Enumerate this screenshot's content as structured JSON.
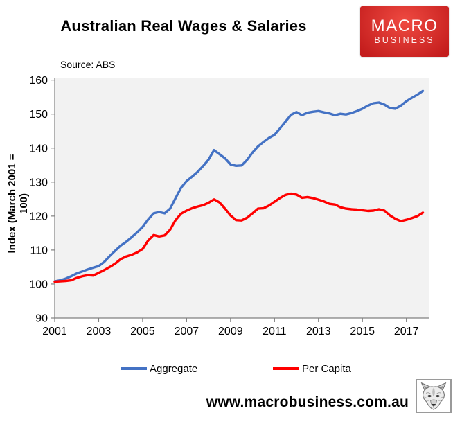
{
  "header": {
    "title": "Australian Real Wages & Salaries",
    "logo_line1": "MACRO",
    "logo_line2": "BUSINESS"
  },
  "source_note": "Source: ABS",
  "footer": {
    "url": "www.macrobusiness.com.au",
    "logo_icon": "wolf-face-icon"
  },
  "colors": {
    "aggregate": "#4472C4",
    "per_capita": "#FF0000",
    "plot_bg": "#F2F2F2",
    "axis": "#808080",
    "tick_text": "#000000",
    "logo_red_light": "#EF4A41",
    "logo_red_dark": "#C41D1D"
  },
  "chart_data": {
    "type": "line",
    "title": "Australian Real Wages & Salaries",
    "xlabel": "",
    "ylabel": "Index (March 2001 = 100)",
    "grid": false,
    "legend_position": "bottom",
    "plot_background": "#F2F2F2",
    "x_start": 2001.0,
    "x_step": 0.25,
    "xlim": [
      2001,
      2018.05
    ],
    "ylim": [
      90,
      160
    ],
    "x_ticks": [
      2001,
      2003,
      2005,
      2007,
      2009,
      2011,
      2013,
      2015,
      2017
    ],
    "x_tick_labels": [
      "2001",
      "2003",
      "2005",
      "2007",
      "2009",
      "2011",
      "2013",
      "2015",
      "2017"
    ],
    "y_ticks": [
      90,
      100,
      110,
      120,
      130,
      140,
      150,
      160
    ],
    "series": [
      {
        "name": "Aggregate",
        "color": "#4472C4",
        "values": [
          100.8,
          101.1,
          101.6,
          102.3,
          103.1,
          103.7,
          104.3,
          104.8,
          105.3,
          106.5,
          108.2,
          109.8,
          111.3,
          112.4,
          113.8,
          115.2,
          116.8,
          119.0,
          120.8,
          121.2,
          120.8,
          122.2,
          125.3,
          128.3,
          130.3,
          131.6,
          133.0,
          134.7,
          136.6,
          139.4,
          138.2,
          137.0,
          135.2,
          134.8,
          134.9,
          136.5,
          138.7,
          140.5,
          141.8,
          143.0,
          143.9,
          145.8,
          147.8,
          149.8,
          150.6,
          149.7,
          150.4,
          150.7,
          150.9,
          150.5,
          150.2,
          149.7,
          150.1,
          149.9,
          150.3,
          150.9,
          151.6,
          152.5,
          153.2,
          153.4,
          152.8,
          151.8,
          151.6,
          152.5,
          153.8,
          154.8,
          155.7,
          156.8
        ]
      },
      {
        "name": "Per Capita",
        "color": "#FF0000",
        "values": [
          100.7,
          100.8,
          100.9,
          101.1,
          101.8,
          102.3,
          102.6,
          102.5,
          103.3,
          104.1,
          105.0,
          106.0,
          107.3,
          108.1,
          108.6,
          109.3,
          110.3,
          112.8,
          114.4,
          114.0,
          114.3,
          116.0,
          118.8,
          120.7,
          121.6,
          122.3,
          122.8,
          123.2,
          123.9,
          124.9,
          124.0,
          122.2,
          120.2,
          118.8,
          118.7,
          119.5,
          120.8,
          122.2,
          122.3,
          123.1,
          124.2,
          125.3,
          126.2,
          126.6,
          126.3,
          125.4,
          125.6,
          125.3,
          124.8,
          124.3,
          123.6,
          123.4,
          122.6,
          122.2,
          122.0,
          121.9,
          121.7,
          121.5,
          121.6,
          122.0,
          121.6,
          120.2,
          119.2,
          118.5,
          118.9,
          119.4,
          120.0,
          121.0
        ]
      }
    ]
  }
}
